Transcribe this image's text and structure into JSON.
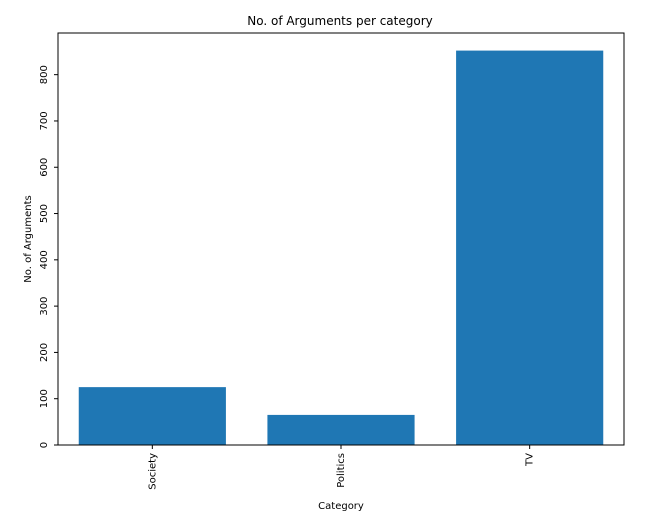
{
  "chart_data": {
    "type": "bar",
    "title": "No. of Arguments per category",
    "xlabel": "Category",
    "ylabel": "No. of Arguments",
    "categories": [
      "Society",
      "Politics",
      "TV"
    ],
    "values": [
      125,
      65,
      852
    ],
    "ylim": [
      0,
      890
    ],
    "yticks": [
      0,
      100,
      200,
      300,
      400,
      500,
      600,
      700,
      800
    ],
    "ytick_labels": [
      "0",
      "100",
      "200",
      "300",
      "400",
      "500",
      "600",
      "700",
      "800"
    ],
    "bar_color": "#1f77b4",
    "grid": false,
    "legend": "none",
    "tick_label_rotation": "vertical"
  }
}
